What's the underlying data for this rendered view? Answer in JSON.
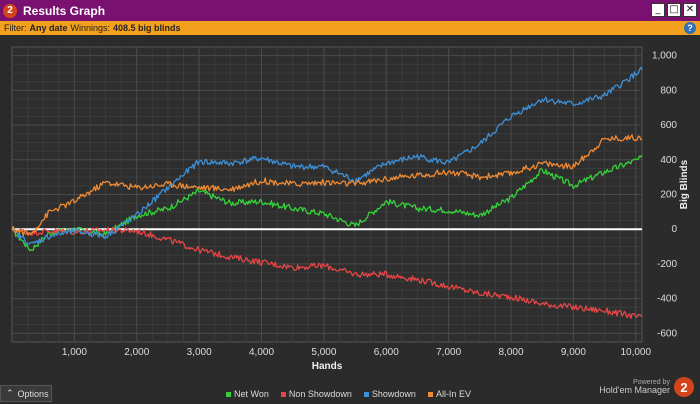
{
  "window": {
    "icon_number": "2",
    "title": "Results Graph",
    "buttons": [
      "_",
      "□",
      "✕"
    ]
  },
  "filter": {
    "label": "Filter:",
    "date_value": "Any date",
    "winnings_label": "Winnings:",
    "winnings_value": "408.5 big blinds"
  },
  "footer": {
    "options_label": "Options",
    "powered_by": "Powered by",
    "brand": "Hold'em Manager",
    "brand_number": "2"
  },
  "colors": {
    "net_won": "#35d13a",
    "non_showdown": "#e64646",
    "showdown": "#3d8fd6",
    "all_in_ev": "#ef8a33",
    "zero_line": "#ffffff",
    "plot_bg": "#2e2e2e",
    "grid": "#4a4a4a"
  },
  "chart_data": {
    "type": "line",
    "xlabel": "Hands",
    "ylabel": "Big Blinds",
    "xlim": [
      0,
      10100
    ],
    "ylim": [
      -650,
      1050
    ],
    "x_ticks": [
      1000,
      2000,
      3000,
      4000,
      5000,
      6000,
      7000,
      8000,
      9000,
      10000
    ],
    "x_tick_labels": [
      "1,000",
      "2,000",
      "3,000",
      "4,000",
      "5,000",
      "6,000",
      "7,000",
      "8,000",
      "9,000",
      "10,000"
    ],
    "y_ticks": [
      -600,
      -400,
      -200,
      0,
      200,
      400,
      600,
      800,
      1000
    ],
    "y_tick_labels": [
      "-600",
      "-400",
      "-200",
      "0",
      "200",
      "400",
      "600",
      "800",
      "1,000"
    ],
    "grid": true,
    "legend_position": "bottom",
    "x": [
      0,
      300,
      600,
      1000,
      1500,
      2000,
      2500,
      3000,
      3500,
      4000,
      4500,
      5000,
      5500,
      6000,
      6500,
      7000,
      7500,
      8000,
      8500,
      9000,
      9500,
      10100
    ],
    "series": [
      {
        "name": "Net Won",
        "color": "#35d13a",
        "values": [
          0,
          -120,
          -20,
          0,
          -30,
          80,
          120,
          220,
          150,
          160,
          120,
          90,
          20,
          160,
          120,
          110,
          80,
          180,
          340,
          250,
          330,
          410
        ]
      },
      {
        "name": "Non Showdown",
        "color": "#e64646",
        "values": [
          0,
          -20,
          -10,
          -15,
          -5,
          -10,
          -60,
          -120,
          -160,
          -190,
          -220,
          -210,
          -260,
          -260,
          -290,
          -330,
          -370,
          -390,
          -430,
          -450,
          -470,
          -510
        ]
      },
      {
        "name": "Showdown",
        "color": "#3d8fd6",
        "values": [
          0,
          -90,
          -40,
          -10,
          -40,
          80,
          240,
          390,
          380,
          410,
          360,
          360,
          280,
          380,
          420,
          380,
          490,
          650,
          750,
          720,
          770,
          920
        ]
      },
      {
        "name": "All-In EV",
        "color": "#ef8a33",
        "values": [
          0,
          -30,
          100,
          160,
          270,
          240,
          260,
          240,
          230,
          280,
          260,
          270,
          260,
          290,
          310,
          330,
          300,
          320,
          380,
          360,
          520,
          530
        ]
      }
    ]
  }
}
